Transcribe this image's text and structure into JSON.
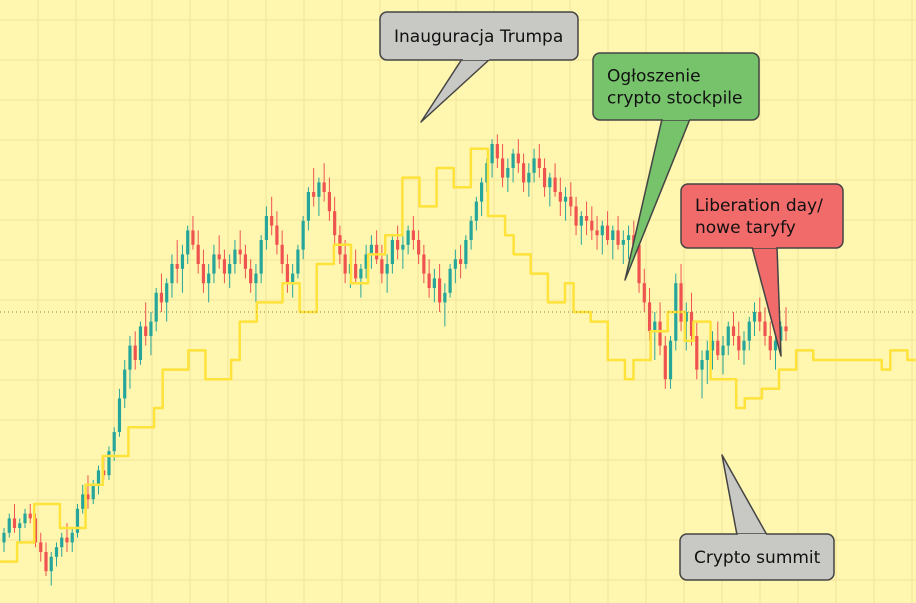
{
  "chart_data": {
    "type": "candlestick",
    "grid": true,
    "colors": {
      "background": "#fff7b0",
      "grid": "#efe39a",
      "up": "#26a69a",
      "down": "#ef5350",
      "overlay_line": "#ffe23a",
      "reference_line": "#8a7a50"
    },
    "series": [
      {
        "kind": "candlestick",
        "values": [
          [
            12,
            15,
            10,
            14
          ],
          [
            14,
            18,
            13,
            17
          ],
          [
            17,
            20,
            14,
            15
          ],
          [
            15,
            17,
            12,
            16
          ],
          [
            16,
            19,
            15,
            18
          ],
          [
            18,
            20,
            16,
            17
          ],
          [
            17,
            18,
            11,
            12
          ],
          [
            12,
            14,
            8,
            10
          ],
          [
            10,
            12,
            5,
            6
          ],
          [
            6,
            10,
            3,
            9
          ],
          [
            9,
            12,
            7,
            11
          ],
          [
            11,
            14,
            9,
            13
          ],
          [
            13,
            16,
            10,
            12
          ],
          [
            12,
            15,
            10,
            14
          ],
          [
            14,
            20,
            13,
            19
          ],
          [
            19,
            24,
            18,
            22
          ],
          [
            22,
            26,
            19,
            21
          ],
          [
            21,
            25,
            20,
            24
          ],
          [
            24,
            28,
            22,
            27
          ],
          [
            27,
            30,
            25,
            26
          ],
          [
            26,
            32,
            25,
            31
          ],
          [
            31,
            36,
            29,
            35
          ],
          [
            35,
            44,
            34,
            42
          ],
          [
            42,
            50,
            40,
            48
          ],
          [
            48,
            55,
            44,
            53
          ],
          [
            53,
            56,
            48,
            50
          ],
          [
            50,
            58,
            49,
            57
          ],
          [
            57,
            62,
            53,
            55
          ],
          [
            55,
            60,
            51,
            58
          ],
          [
            58,
            65,
            56,
            64
          ],
          [
            64,
            68,
            60,
            62
          ],
          [
            62,
            67,
            58,
            66
          ],
          [
            66,
            72,
            63,
            70
          ],
          [
            70,
            75,
            66,
            69
          ],
          [
            69,
            74,
            64,
            72
          ],
          [
            72,
            78,
            70,
            77
          ],
          [
            77,
            80,
            73,
            74
          ],
          [
            74,
            77,
            68,
            70
          ],
          [
            70,
            73,
            64,
            66
          ],
          [
            66,
            70,
            62,
            68
          ],
          [
            68,
            74,
            66,
            72
          ],
          [
            72,
            76,
            69,
            71
          ],
          [
            71,
            73,
            66,
            68
          ],
          [
            68,
            72,
            65,
            70
          ],
          [
            70,
            75,
            68,
            73
          ],
          [
            73,
            77,
            70,
            72
          ],
          [
            72,
            74,
            67,
            69
          ],
          [
            69,
            71,
            64,
            66
          ],
          [
            66,
            70,
            62,
            68
          ],
          [
            68,
            76,
            66,
            75
          ],
          [
            75,
            82,
            73,
            80
          ],
          [
            80,
            84,
            76,
            78
          ],
          [
            78,
            81,
            72,
            74
          ],
          [
            74,
            77,
            68,
            70
          ],
          [
            70,
            72,
            64,
            66
          ],
          [
            66,
            70,
            63,
            68
          ],
          [
            68,
            74,
            67,
            73
          ],
          [
            73,
            80,
            71,
            79
          ],
          [
            79,
            86,
            77,
            85
          ],
          [
            85,
            90,
            82,
            84
          ],
          [
            84,
            88,
            80,
            87
          ],
          [
            87,
            91,
            83,
            85
          ],
          [
            85,
            88,
            79,
            81
          ],
          [
            81,
            84,
            74,
            76
          ],
          [
            76,
            78,
            70,
            72
          ],
          [
            72,
            75,
            66,
            68
          ],
          [
            68,
            72,
            65,
            70
          ],
          [
            70,
            73,
            66,
            67
          ],
          [
            67,
            70,
            63,
            69
          ],
          [
            69,
            74,
            67,
            72
          ],
          [
            72,
            76,
            69,
            74
          ],
          [
            74,
            77,
            70,
            71
          ],
          [
            71,
            74,
            66,
            68
          ],
          [
            68,
            72,
            64,
            70
          ],
          [
            70,
            76,
            68,
            75
          ],
          [
            75,
            78,
            71,
            73
          ],
          [
            73,
            76,
            69,
            74
          ],
          [
            74,
            78,
            72,
            77
          ],
          [
            77,
            80,
            73,
            75
          ],
          [
            75,
            77,
            70,
            72
          ],
          [
            72,
            74,
            66,
            68
          ],
          [
            68,
            71,
            63,
            65
          ],
          [
            65,
            69,
            62,
            67
          ],
          [
            67,
            70,
            60,
            62
          ],
          [
            62,
            66,
            57,
            64
          ],
          [
            64,
            70,
            63,
            69
          ],
          [
            69,
            73,
            66,
            71
          ],
          [
            71,
            74,
            67,
            70
          ],
          [
            70,
            76,
            69,
            75
          ],
          [
            75,
            80,
            73,
            79
          ],
          [
            79,
            84,
            77,
            83
          ],
          [
            83,
            88,
            80,
            87
          ],
          [
            87,
            92,
            85,
            91
          ],
          [
            91,
            96,
            88,
            95
          ],
          [
            95,
            97,
            90,
            92
          ],
          [
            92,
            95,
            86,
            88
          ],
          [
            88,
            92,
            85,
            90
          ],
          [
            90,
            94,
            87,
            93
          ],
          [
            93,
            96,
            89,
            91
          ],
          [
            91,
            93,
            85,
            87
          ],
          [
            87,
            91,
            84,
            89
          ],
          [
            89,
            94,
            87,
            92
          ],
          [
            92,
            95,
            88,
            90
          ],
          [
            90,
            92,
            84,
            86
          ],
          [
            86,
            89,
            82,
            88
          ],
          [
            88,
            91,
            84,
            85
          ],
          [
            85,
            88,
            80,
            83
          ],
          [
            83,
            86,
            79,
            84
          ],
          [
            84,
            87,
            80,
            82
          ],
          [
            82,
            84,
            76,
            78
          ],
          [
            78,
            81,
            74,
            80
          ],
          [
            80,
            83,
            76,
            79
          ],
          [
            79,
            82,
            75,
            77
          ],
          [
            77,
            80,
            73,
            76
          ],
          [
            76,
            79,
            72,
            78
          ],
          [
            78,
            81,
            74,
            75
          ],
          [
            75,
            78,
            71,
            77
          ],
          [
            77,
            80,
            73,
            74
          ],
          [
            74,
            77,
            70,
            75
          ],
          [
            75,
            78,
            71,
            76
          ],
          [
            76,
            79,
            72,
            74
          ],
          [
            74,
            76,
            64,
            66
          ],
          [
            66,
            69,
            60,
            62
          ],
          [
            62,
            65,
            54,
            56
          ],
          [
            56,
            60,
            50,
            58
          ],
          [
            58,
            62,
            51,
            53
          ],
          [
            53,
            55,
            44,
            46
          ],
          [
            46,
            55,
            44,
            54
          ],
          [
            54,
            68,
            52,
            66
          ],
          [
            66,
            70,
            56,
            58
          ],
          [
            58,
            62,
            52,
            60
          ],
          [
            60,
            64,
            53,
            55
          ],
          [
            55,
            58,
            46,
            48
          ],
          [
            48,
            52,
            42,
            50
          ],
          [
            50,
            54,
            45,
            52
          ],
          [
            52,
            56,
            48,
            54
          ],
          [
            54,
            58,
            50,
            51
          ],
          [
            51,
            55,
            47,
            53
          ],
          [
            53,
            58,
            51,
            57
          ],
          [
            57,
            60,
            53,
            55
          ],
          [
            55,
            58,
            50,
            52
          ],
          [
            52,
            56,
            49,
            54
          ],
          [
            54,
            59,
            52,
            58
          ],
          [
            58,
            62,
            55,
            60
          ],
          [
            60,
            63,
            56,
            58
          ],
          [
            58,
            61,
            53,
            55
          ],
          [
            55,
            58,
            50,
            52
          ],
          [
            52,
            56,
            48,
            54
          ],
          [
            54,
            58,
            51,
            57
          ],
          [
            57,
            61,
            54,
            56
          ]
        ]
      },
      {
        "kind": "line",
        "values": [
          8,
          8,
          12,
          12,
          20,
          20,
          20,
          15,
          15,
          15,
          24,
          24,
          30,
          30,
          30,
          36,
          36,
          36,
          40,
          48,
          48,
          48,
          52,
          52,
          46,
          46,
          46,
          50,
          58,
          58,
          62,
          62,
          62,
          66,
          66,
          60,
          60,
          70,
          70,
          74,
          74,
          66,
          66,
          72,
          72,
          76,
          76,
          88,
          88,
          82,
          82,
          90,
          90,
          86,
          86,
          94,
          94,
          80,
          80,
          76,
          72,
          72,
          68,
          68,
          62,
          62,
          66,
          60,
          60,
          58,
          58,
          50,
          50,
          46,
          50,
          50,
          56,
          56,
          60,
          60,
          54,
          58,
          58,
          46,
          46,
          46,
          40,
          42,
          42,
          44,
          44,
          48,
          48,
          52,
          52,
          50,
          50,
          50,
          50,
          50,
          50,
          50,
          50,
          48,
          52,
          52,
          50,
          50
        ]
      }
    ],
    "reference_lines": [
      {
        "orientation": "horizontal",
        "style": "dotted",
        "y": 60
      }
    ],
    "annotations": [
      {
        "label": "Inauguracja Trumpa",
        "color": "#c8c8c4"
      },
      {
        "label": "Ogłoszenie\ncrypto stockpile",
        "color": "#77c36b"
      },
      {
        "label": "Liberation day/\nnowe taryfy",
        "color": "#f26b6b"
      },
      {
        "label": "Crypto summit",
        "color": "#c8c8c4"
      }
    ]
  }
}
